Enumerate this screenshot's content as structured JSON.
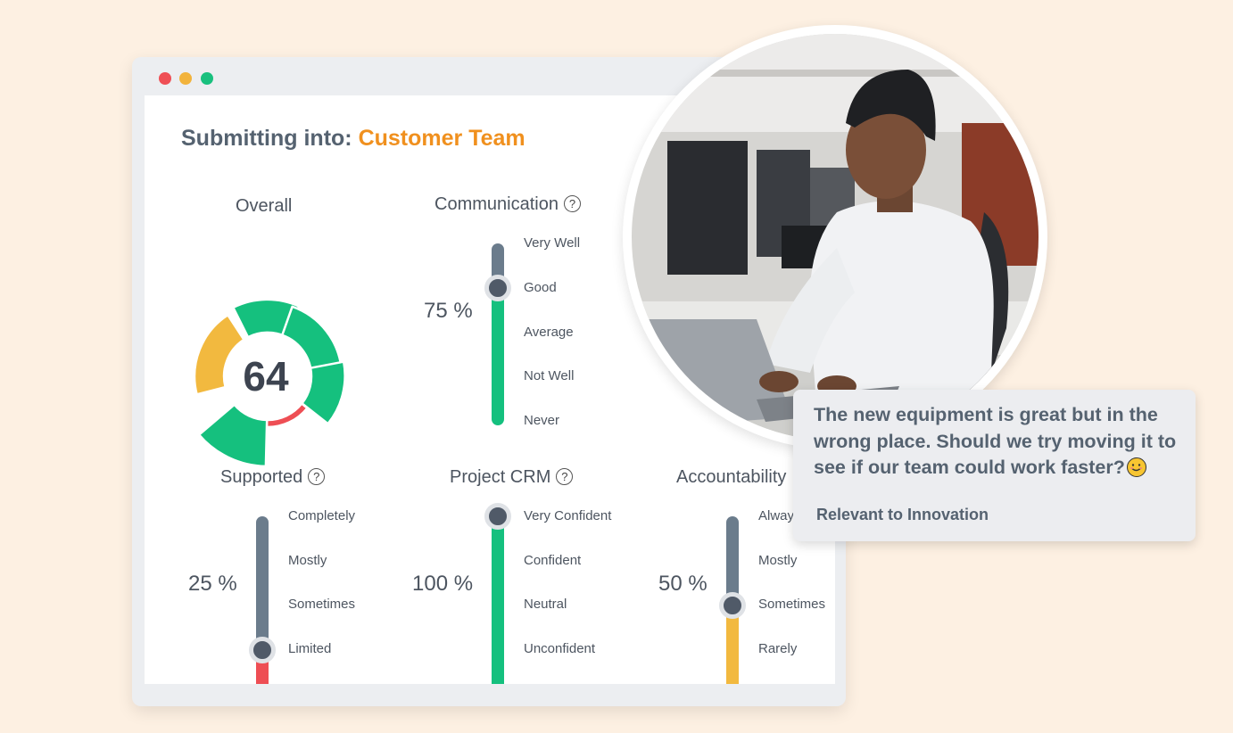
{
  "window": {
    "traffic_lights": {
      "close": "#ef4f55",
      "minimize": "#f2b33c",
      "maximize": "#19c07e"
    }
  },
  "form": {
    "title_prefix": "Submitting into:",
    "team_name": "Customer Team",
    "colors": {
      "accent": "#f0901e",
      "green": "#15c07e",
      "yellow": "#f2b93f",
      "red": "#ee4e54",
      "slate": "#6b7c8c"
    }
  },
  "overall": {
    "label": "Overall",
    "score": "64"
  },
  "communication": {
    "label": "Communication",
    "percent": "75 %",
    "value": 0.75,
    "options": [
      "Very Well",
      "Good",
      "Average",
      "Not Well",
      "Never"
    ]
  },
  "supported": {
    "label": "Supported",
    "percent": "25 %",
    "value": 0.25,
    "options": [
      "Completely",
      "Mostly",
      "Sometimes",
      "Limited"
    ]
  },
  "project_crm": {
    "label": "Project CRM",
    "percent": "100 %",
    "value": 1.0,
    "options": [
      "Very Confident",
      "Confident",
      "Neutral",
      "Unconfident"
    ]
  },
  "accountability": {
    "label": "Accountability",
    "percent": "50 %",
    "value": 0.5,
    "options": [
      "Always",
      "Mostly",
      "Sometimes",
      "Rarely"
    ]
  },
  "help_glyph": "?",
  "comment": {
    "text": "The new equipment is great but in the wrong place. Should we try moving it to see if our team could work faster?",
    "emoji_icon": "smiling-face-icon",
    "tag": "Relevant to Innovation"
  }
}
